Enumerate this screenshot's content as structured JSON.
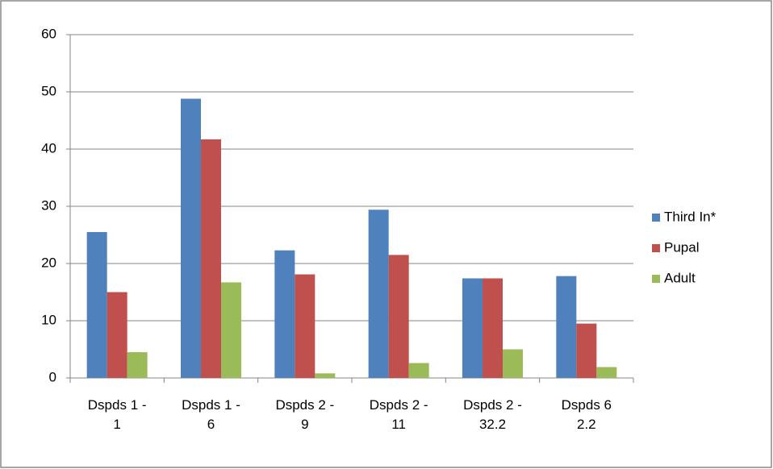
{
  "chart_data": {
    "type": "bar",
    "categories": [
      "Dspds 1 - 1",
      "Dspds 1 - 6",
      "Dspds 2 - 9",
      "Dspds 2 - 11",
      "Dspds 2 - 32.2",
      "Dspds 6 2.2"
    ],
    "series": [
      {
        "name": "Third In*",
        "color": "#4f81bd",
        "values": [
          25.5,
          48.8,
          22.3,
          29.4,
          17.4,
          17.8
        ]
      },
      {
        "name": "Pupal",
        "color": "#c0504d",
        "values": [
          15,
          41.7,
          18.1,
          21.5,
          17.4,
          9.5
        ]
      },
      {
        "name": "Adult",
        "color": "#9bbb59",
        "values": [
          4.5,
          16.7,
          0.8,
          2.6,
          5,
          1.9
        ]
      }
    ],
    "ylim": [
      0,
      60
    ],
    "yticks": [
      0,
      10,
      20,
      30,
      40,
      50,
      60
    ],
    "grid": true,
    "legend": "right"
  }
}
